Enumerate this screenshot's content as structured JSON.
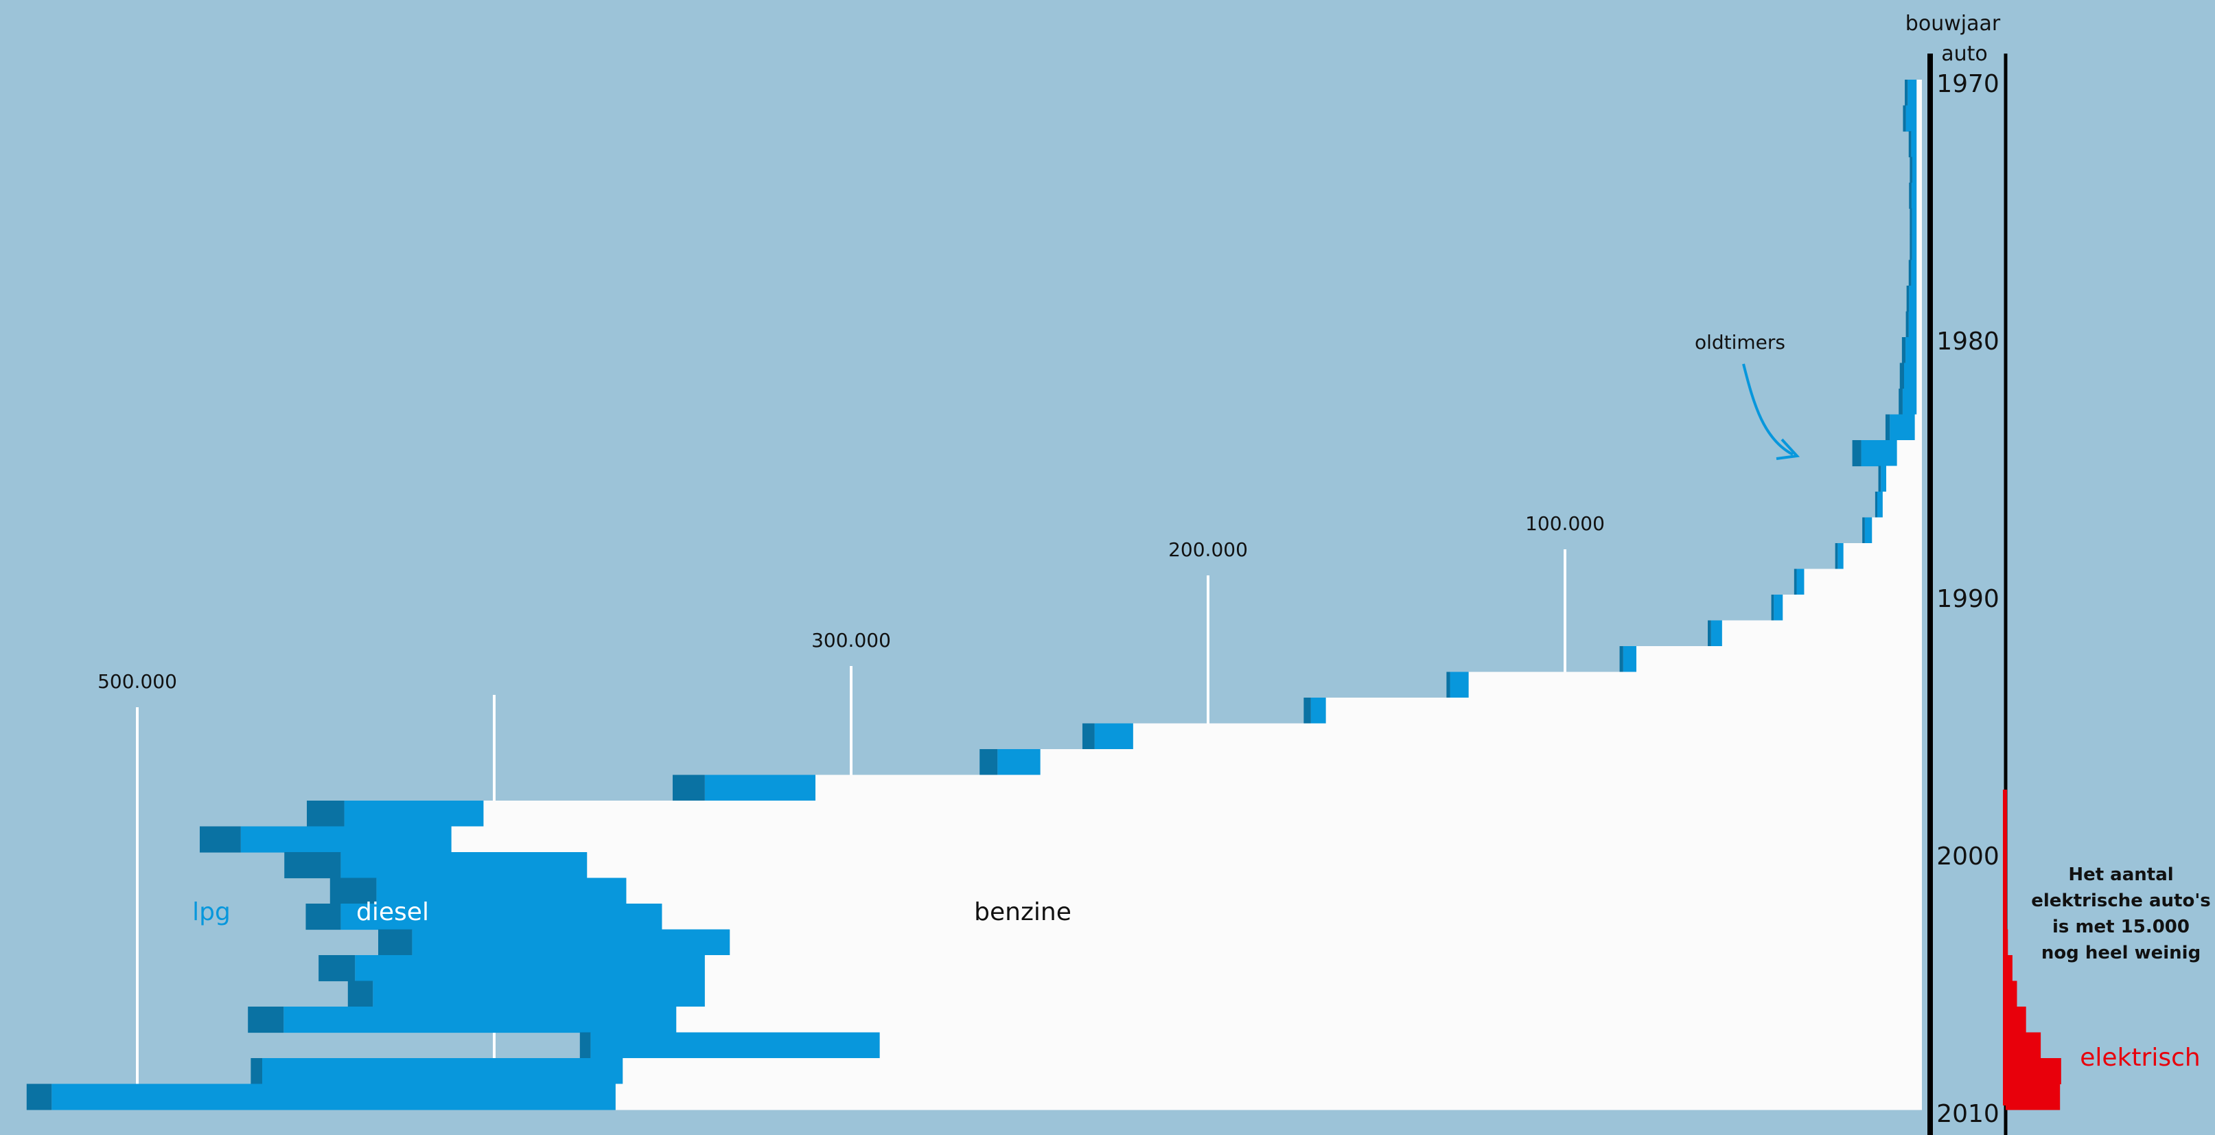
{
  "chart_data": {
    "type": "bar",
    "orientation": "horizontal-stacked",
    "axis_header": [
      "bouwjaar",
      "auto"
    ],
    "year_labels": [
      1970,
      1980,
      1990,
      2000,
      2010
    ],
    "years": [
      1970,
      1971,
      1972,
      1973,
      1974,
      1975,
      1976,
      1977,
      1978,
      1979,
      1980,
      1981,
      1982,
      1983,
      1984,
      1985,
      1986,
      1987,
      1988,
      1989,
      1990,
      1991,
      1992,
      1993,
      1994,
      1995,
      1996,
      1997,
      1998,
      1999,
      2000,
      2001,
      2002,
      2003,
      2004,
      2005,
      2006,
      2007,
      2008,
      2009
    ],
    "x_ticks": [
      {
        "value": 100000,
        "label": "100.000"
      },
      {
        "value": 200000,
        "label": "200.000"
      },
      {
        "value": 300000,
        "label": "300.000"
      },
      {
        "value": 400000,
        "label": ""
      },
      {
        "value": 500000,
        "label": "500.000"
      }
    ],
    "series": [
      {
        "name": "benzine",
        "color": "#fbfbfb",
        "values": [
          1500,
          1500,
          1500,
          1500,
          1500,
          1500,
          1500,
          1500,
          1500,
          1500,
          1500,
          1500,
          1500,
          2000,
          7000,
          10000,
          11000,
          14000,
          22000,
          33000,
          39000,
          56000,
          80000,
          127000,
          167000,
          221000,
          247000,
          310000,
          403000,
          412000,
          374000,
          363000,
          353000,
          334000,
          341000,
          341000,
          349000,
          292000,
          364000,
          366000
        ]
      },
      {
        "name": "diesel",
        "color": "#0897dc",
        "values": [
          2500,
          3000,
          1500,
          1200,
          1400,
          1300,
          1300,
          1500,
          2100,
          2200,
          3100,
          3500,
          3900,
          7000,
          10000,
          1500,
          1500,
          2000,
          1600,
          2100,
          2500,
          3100,
          3700,
          5200,
          4200,
          10800,
          12000,
          31000,
          39000,
          59000,
          69000,
          70000,
          90000,
          89000,
          98000,
          93000,
          110000,
          81000,
          101000,
          158000
        ]
      },
      {
        "name": "lpg",
        "color": "#0a72a3",
        "values": [
          800,
          800,
          700,
          700,
          700,
          600,
          600,
          700,
          700,
          800,
          1000,
          1200,
          1100,
          1200,
          2500,
          700,
          600,
          700,
          700,
          700,
          700,
          900,
          1000,
          1000,
          2000,
          3400,
          5000,
          9000,
          10500,
          11500,
          15800,
          13000,
          9800,
          9500,
          10200,
          7000,
          10000,
          3000,
          3200,
          7000
        ]
      }
    ],
    "labels": {
      "benzine": "benzine",
      "diesel": "diesel",
      "lpg": "lpg"
    },
    "electric": {
      "name": "elektrisch",
      "color": "#e8000b",
      "note": [
        "Het aantal",
        "elektrische auto's",
        "is met 15.000",
        "nog heel weinig"
      ],
      "values": [
        0,
        0,
        0,
        0,
        0,
        0,
        0,
        0,
        0,
        0,
        0,
        0,
        0,
        0,
        0,
        0,
        0,
        0,
        0,
        0,
        0,
        0,
        0,
        0,
        0,
        0,
        0,
        0,
        1,
        1,
        1,
        1,
        1,
        20,
        60,
        100,
        180,
        310,
        490,
        480
      ]
    },
    "annotation": {
      "text": "oldtimers",
      "arrow_color": "#0897dc"
    }
  }
}
